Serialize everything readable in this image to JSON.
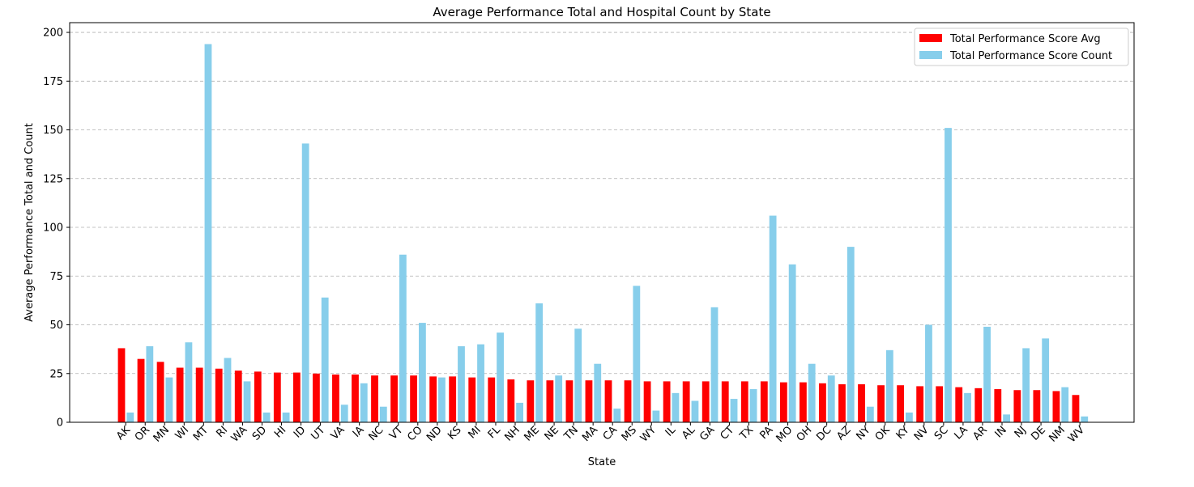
{
  "chart_data": {
    "type": "bar",
    "title": "Average Performance Total and Hospital Count by State",
    "xlabel": "State",
    "ylabel": "Average Performance Total and Count",
    "ylim": [
      0,
      205
    ],
    "yticks": [
      0,
      25,
      50,
      75,
      100,
      125,
      150,
      175,
      200
    ],
    "grid": "y-dashed",
    "legend_position": "top-right",
    "categories": [
      "AK",
      "OR",
      "MN",
      "WI",
      "MT",
      "RI",
      "WA",
      "SD",
      "HI",
      "ID",
      "UT",
      "VA",
      "IA",
      "NC",
      "VT",
      "CO",
      "ND",
      "KS",
      "MI",
      "FL",
      "NH",
      "ME",
      "NE",
      "TN",
      "MA",
      "CA",
      "MS",
      "WY",
      "IL",
      "AL",
      "GA",
      "CT",
      "TX",
      "PA",
      "MO",
      "OH",
      "DC",
      "AZ",
      "NY",
      "OK",
      "KY",
      "NV",
      "SC",
      "LA",
      "AR",
      "IN",
      "NJ",
      "DE",
      "NM",
      "WV"
    ],
    "series": [
      {
        "name": "Total Performance Score Avg",
        "color": "#ff0000",
        "values": [
          38,
          32.5,
          31,
          28,
          28,
          27.5,
          26.5,
          26,
          25.5,
          25.5,
          25,
          24.5,
          24.5,
          24,
          24,
          24,
          23.5,
          23.5,
          23,
          23,
          22,
          21.5,
          21.5,
          21.5,
          21.5,
          21.5,
          21.5,
          21,
          21,
          21,
          21,
          21,
          21,
          21,
          20.5,
          20.5,
          20,
          19.5,
          19.5,
          19,
          19,
          18.5,
          18.5,
          18,
          17.5,
          17,
          16.5,
          16.5,
          16,
          14
        ]
      },
      {
        "name": "Total Performance Score Count",
        "color": "#87ceeb",
        "values": [
          5,
          39,
          23,
          41,
          194,
          33,
          21,
          5,
          5,
          143,
          64,
          9,
          20,
          8,
          86,
          51,
          23,
          39,
          40,
          46,
          10,
          61,
          24,
          48,
          30,
          7,
          70,
          6,
          15,
          11,
          59,
          12,
          17,
          106,
          81,
          30,
          24,
          90,
          8,
          37,
          5,
          50,
          151,
          15,
          49,
          4,
          38,
          43,
          18,
          3
        ]
      }
    ]
  }
}
